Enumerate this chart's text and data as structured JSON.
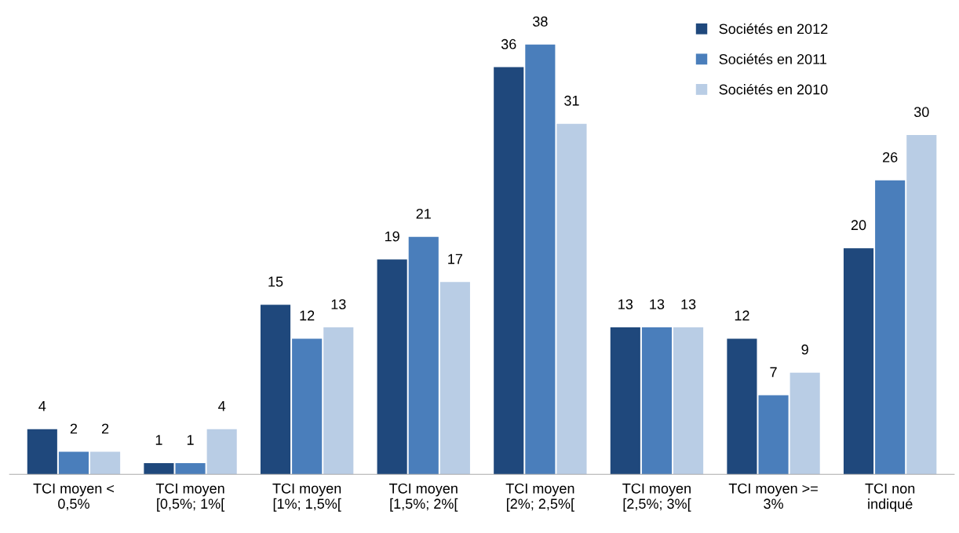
{
  "chart_data": {
    "type": "bar",
    "categories": [
      "TCI moyen <\n0,5%",
      "TCI moyen\n[0,5%; 1%[",
      "TCI moyen\n[1%; 1,5%[",
      "TCI moyen\n[1,5%; 2%[",
      "TCI moyen\n[2%; 2,5%[",
      "TCI moyen\n[2,5%; 3%[",
      "TCI moyen >=\n3%",
      "TCI non\nindiqué"
    ],
    "series": [
      {
        "name": "Sociétés en 2012",
        "color": "#1f487c",
        "values": [
          4,
          1,
          15,
          19,
          36,
          13,
          12,
          20
        ]
      },
      {
        "name": "Sociétés en 2011",
        "color": "#4a7ebb",
        "values": [
          2,
          1,
          12,
          21,
          38,
          13,
          7,
          26
        ]
      },
      {
        "name": "Sociétés en 2010",
        "color": "#b9cde5",
        "values": [
          2,
          4,
          13,
          17,
          31,
          13,
          9,
          30
        ]
      }
    ],
    "data_labels": true,
    "legend": "top right"
  }
}
